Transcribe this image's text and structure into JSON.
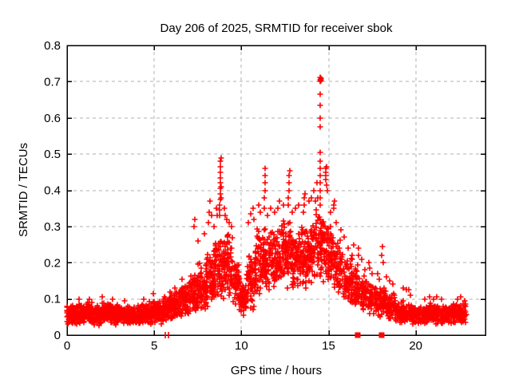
{
  "chart_data": {
    "type": "scatter",
    "title": "Day 206 of 2025, SRMTID for receiver sbok",
    "xlabel": "GPS time / hours",
    "ylabel": "SRMTID / TECUs",
    "xlim": [
      0,
      24
    ],
    "ylim": [
      0,
      0.8
    ],
    "xticks": [
      0,
      5,
      10,
      15,
      20
    ],
    "xtick_labels": [
      "0",
      "5",
      "10",
      "15",
      "20"
    ],
    "yticks": [
      0,
      0.1,
      0.2,
      0.3,
      0.4,
      0.5,
      0.6,
      0.7,
      0.8
    ],
    "ytick_labels": [
      "0",
      "0.1",
      "0.2",
      "0.3",
      "0.4",
      "0.5",
      "0.6",
      "0.7",
      "0.8"
    ],
    "grid": {
      "visible": true,
      "style": "dashed",
      "color": "#b0b0b0"
    },
    "marker": {
      "type": "plus",
      "color": "#ff0000",
      "size": 7
    },
    "series_name": "SRMTID",
    "data_time_span_hours": [
      0,
      22.9
    ],
    "max_point": [
      14.55,
      0.71
    ],
    "density_bins": [
      [
        0.0,
        0.5,
        90,
        0.025,
        0.085
      ],
      [
        0.5,
        1.0,
        90,
        0.03,
        0.09
      ],
      [
        1.0,
        1.5,
        85,
        0.03,
        0.095
      ],
      [
        1.5,
        2.0,
        85,
        0.025,
        0.085
      ],
      [
        2.0,
        2.5,
        85,
        0.03,
        0.09
      ],
      [
        2.5,
        3.0,
        85,
        0.025,
        0.09
      ],
      [
        3.0,
        3.5,
        85,
        0.03,
        0.085
      ],
      [
        3.5,
        4.0,
        85,
        0.025,
        0.08
      ],
      [
        4.0,
        4.5,
        85,
        0.03,
        0.09
      ],
      [
        4.5,
        5.0,
        85,
        0.03,
        0.095
      ],
      [
        5.0,
        5.5,
        80,
        0.03,
        0.095
      ],
      [
        5.5,
        6.0,
        80,
        0.035,
        0.11
      ],
      [
        6.0,
        6.5,
        80,
        0.04,
        0.125
      ],
      [
        6.5,
        7.0,
        80,
        0.05,
        0.15
      ],
      [
        7.0,
        7.5,
        75,
        0.055,
        0.17
      ],
      [
        7.5,
        8.0,
        75,
        0.065,
        0.2
      ],
      [
        8.0,
        8.5,
        75,
        0.075,
        0.24
      ],
      [
        8.5,
        9.0,
        70,
        0.09,
        0.28
      ],
      [
        9.0,
        9.5,
        70,
        0.1,
        0.3
      ],
      [
        9.5,
        9.9,
        55,
        0.08,
        0.22
      ],
      [
        9.9,
        10.3,
        80,
        0.05,
        0.15
      ],
      [
        10.3,
        10.8,
        70,
        0.07,
        0.24
      ],
      [
        10.8,
        11.3,
        70,
        0.1,
        0.3
      ],
      [
        11.3,
        11.8,
        70,
        0.12,
        0.31
      ],
      [
        11.8,
        12.3,
        70,
        0.12,
        0.3
      ],
      [
        12.3,
        12.8,
        70,
        0.13,
        0.32
      ],
      [
        12.8,
        13.3,
        70,
        0.12,
        0.3
      ],
      [
        13.3,
        13.8,
        70,
        0.12,
        0.31
      ],
      [
        13.8,
        14.3,
        70,
        0.13,
        0.33
      ],
      [
        14.3,
        14.8,
        70,
        0.14,
        0.36
      ],
      [
        14.8,
        15.3,
        65,
        0.12,
        0.31
      ],
      [
        15.3,
        15.8,
        60,
        0.1,
        0.27
      ],
      [
        15.8,
        16.3,
        60,
        0.08,
        0.22
      ],
      [
        16.3,
        16.8,
        60,
        0.065,
        0.2
      ],
      [
        16.8,
        17.3,
        55,
        0.055,
        0.17
      ],
      [
        17.3,
        17.8,
        55,
        0.05,
        0.15
      ],
      [
        17.8,
        18.3,
        55,
        0.045,
        0.14
      ],
      [
        18.3,
        18.8,
        55,
        0.04,
        0.12
      ],
      [
        18.8,
        19.3,
        60,
        0.032,
        0.1
      ],
      [
        19.3,
        19.8,
        60,
        0.03,
        0.09
      ],
      [
        19.8,
        20.3,
        65,
        0.028,
        0.082
      ],
      [
        20.3,
        20.8,
        65,
        0.028,
        0.085
      ],
      [
        20.8,
        21.3,
        65,
        0.03,
        0.09
      ],
      [
        21.3,
        21.8,
        65,
        0.028,
        0.085
      ],
      [
        21.8,
        22.3,
        65,
        0.03,
        0.088
      ],
      [
        22.3,
        22.9,
        75,
        0.03,
        0.092
      ]
    ],
    "extra_points": [
      [
        0.7,
        0.1
      ],
      [
        1.3,
        0.1
      ],
      [
        2.0,
        0.105
      ],
      [
        2.6,
        0.1
      ],
      [
        3.3,
        0.095
      ],
      [
        4.4,
        0.1
      ],
      [
        4.95,
        0.115
      ],
      [
        5.9,
        0.12
      ],
      [
        6.2,
        0.13
      ],
      [
        6.6,
        0.155
      ],
      [
        7.3,
        0.3
      ],
      [
        7.33,
        0.32
      ],
      [
        7.5,
        0.26
      ],
      [
        7.9,
        0.28
      ],
      [
        8.1,
        0.31
      ],
      [
        8.15,
        0.34
      ],
      [
        8.2,
        0.37
      ],
      [
        8.28,
        0.33
      ],
      [
        8.45,
        0.3
      ],
      [
        8.55,
        0.35
      ],
      [
        8.6,
        0.33
      ],
      [
        8.75,
        0.33
      ],
      [
        8.76,
        0.345
      ],
      [
        8.77,
        0.36
      ],
      [
        8.78,
        0.375
      ],
      [
        8.78,
        0.39
      ],
      [
        8.79,
        0.405
      ],
      [
        8.79,
        0.42
      ],
      [
        8.8,
        0.435
      ],
      [
        8.8,
        0.45
      ],
      [
        8.81,
        0.465
      ],
      [
        8.81,
        0.48
      ],
      [
        8.82,
        0.49
      ],
      [
        8.84,
        0.41
      ],
      [
        8.86,
        0.38
      ],
      [
        9.0,
        0.35
      ],
      [
        9.05,
        0.33
      ],
      [
        9.15,
        0.32
      ],
      [
        9.3,
        0.31
      ],
      [
        9.45,
        0.3
      ],
      [
        10.4,
        0.31
      ],
      [
        10.55,
        0.335
      ],
      [
        10.65,
        0.35
      ],
      [
        10.7,
        0.32
      ],
      [
        11.0,
        0.36
      ],
      [
        11.1,
        0.34
      ],
      [
        11.3,
        0.35
      ],
      [
        11.32,
        0.38
      ],
      [
        11.34,
        0.4
      ],
      [
        11.36,
        0.42
      ],
      [
        11.36,
        0.44
      ],
      [
        11.38,
        0.46
      ],
      [
        11.5,
        0.33
      ],
      [
        11.7,
        0.35
      ],
      [
        11.9,
        0.34
      ],
      [
        12.1,
        0.35
      ],
      [
        12.2,
        0.37
      ],
      [
        12.4,
        0.36
      ],
      [
        12.68,
        0.36
      ],
      [
        12.7,
        0.38
      ],
      [
        12.72,
        0.4
      ],
      [
        12.74,
        0.42
      ],
      [
        12.74,
        0.44
      ],
      [
        12.76,
        0.455
      ],
      [
        12.9,
        0.34
      ],
      [
        13.1,
        0.35
      ],
      [
        13.3,
        0.36
      ],
      [
        13.55,
        0.34
      ],
      [
        13.6,
        0.36
      ],
      [
        13.62,
        0.38
      ],
      [
        13.65,
        0.39
      ],
      [
        13.9,
        0.37
      ],
      [
        14.0,
        0.38
      ],
      [
        14.15,
        0.4
      ],
      [
        14.25,
        0.37
      ],
      [
        14.35,
        0.42
      ],
      [
        14.4,
        0.38
      ],
      [
        14.5,
        0.36
      ],
      [
        14.5,
        0.38
      ],
      [
        14.51,
        0.4
      ],
      [
        14.52,
        0.42
      ],
      [
        14.52,
        0.44
      ],
      [
        14.53,
        0.46
      ],
      [
        14.53,
        0.48
      ],
      [
        14.54,
        0.505
      ],
      [
        14.53,
        0.575
      ],
      [
        14.53,
        0.6
      ],
      [
        14.54,
        0.635
      ],
      [
        14.54,
        0.665
      ],
      [
        14.52,
        0.7
      ],
      [
        14.54,
        0.705
      ],
      [
        14.55,
        0.71
      ],
      [
        14.56,
        0.702
      ],
      [
        14.53,
        0.712
      ],
      [
        14.57,
        0.708
      ],
      [
        14.84,
        0.43
      ],
      [
        14.85,
        0.44
      ],
      [
        14.86,
        0.45
      ],
      [
        14.86,
        0.46
      ],
      [
        14.87,
        0.465
      ],
      [
        14.9,
        0.415
      ],
      [
        14.95,
        0.4
      ],
      [
        15.1,
        0.34
      ],
      [
        15.3,
        0.35
      ],
      [
        15.32,
        0.36
      ],
      [
        15.35,
        0.37
      ],
      [
        15.45,
        0.31
      ],
      [
        15.7,
        0.29
      ],
      [
        15.9,
        0.27
      ],
      [
        16.1,
        0.24
      ],
      [
        16.3,
        0.17
      ],
      [
        16.32,
        0.19
      ],
      [
        16.34,
        0.21
      ],
      [
        16.36,
        0.22
      ],
      [
        16.45,
        0.25
      ],
      [
        16.7,
        0.24
      ],
      [
        16.72,
        0.22
      ],
      [
        16.9,
        0.21
      ],
      [
        17.1,
        0.18
      ],
      [
        17.3,
        0.2
      ],
      [
        17.35,
        0.185
      ],
      [
        17.5,
        0.17
      ],
      [
        17.8,
        0.17
      ],
      [
        17.9,
        0.155
      ],
      [
        18.05,
        0.22
      ],
      [
        18.1,
        0.245
      ],
      [
        18.15,
        0.2
      ],
      [
        18.3,
        0.16
      ],
      [
        18.5,
        0.15
      ],
      [
        18.7,
        0.14
      ],
      [
        19.3,
        0.13
      ],
      [
        19.45,
        0.125
      ],
      [
        19.6,
        0.125
      ],
      [
        19.7,
        0.11
      ],
      [
        20.5,
        0.1
      ],
      [
        20.8,
        0.105
      ],
      [
        21.0,
        0.1
      ],
      [
        21.2,
        0.105
      ],
      [
        21.5,
        0.1
      ],
      [
        22.4,
        0.1
      ],
      [
        22.6,
        0.105
      ],
      [
        22.8,
        0.095
      ]
    ],
    "zero_square_markers_x": [
      16.67,
      18.05
    ],
    "zero_bar_markers_x": [
      5.63,
      5.8
    ],
    "render_seed": 20250725
  }
}
